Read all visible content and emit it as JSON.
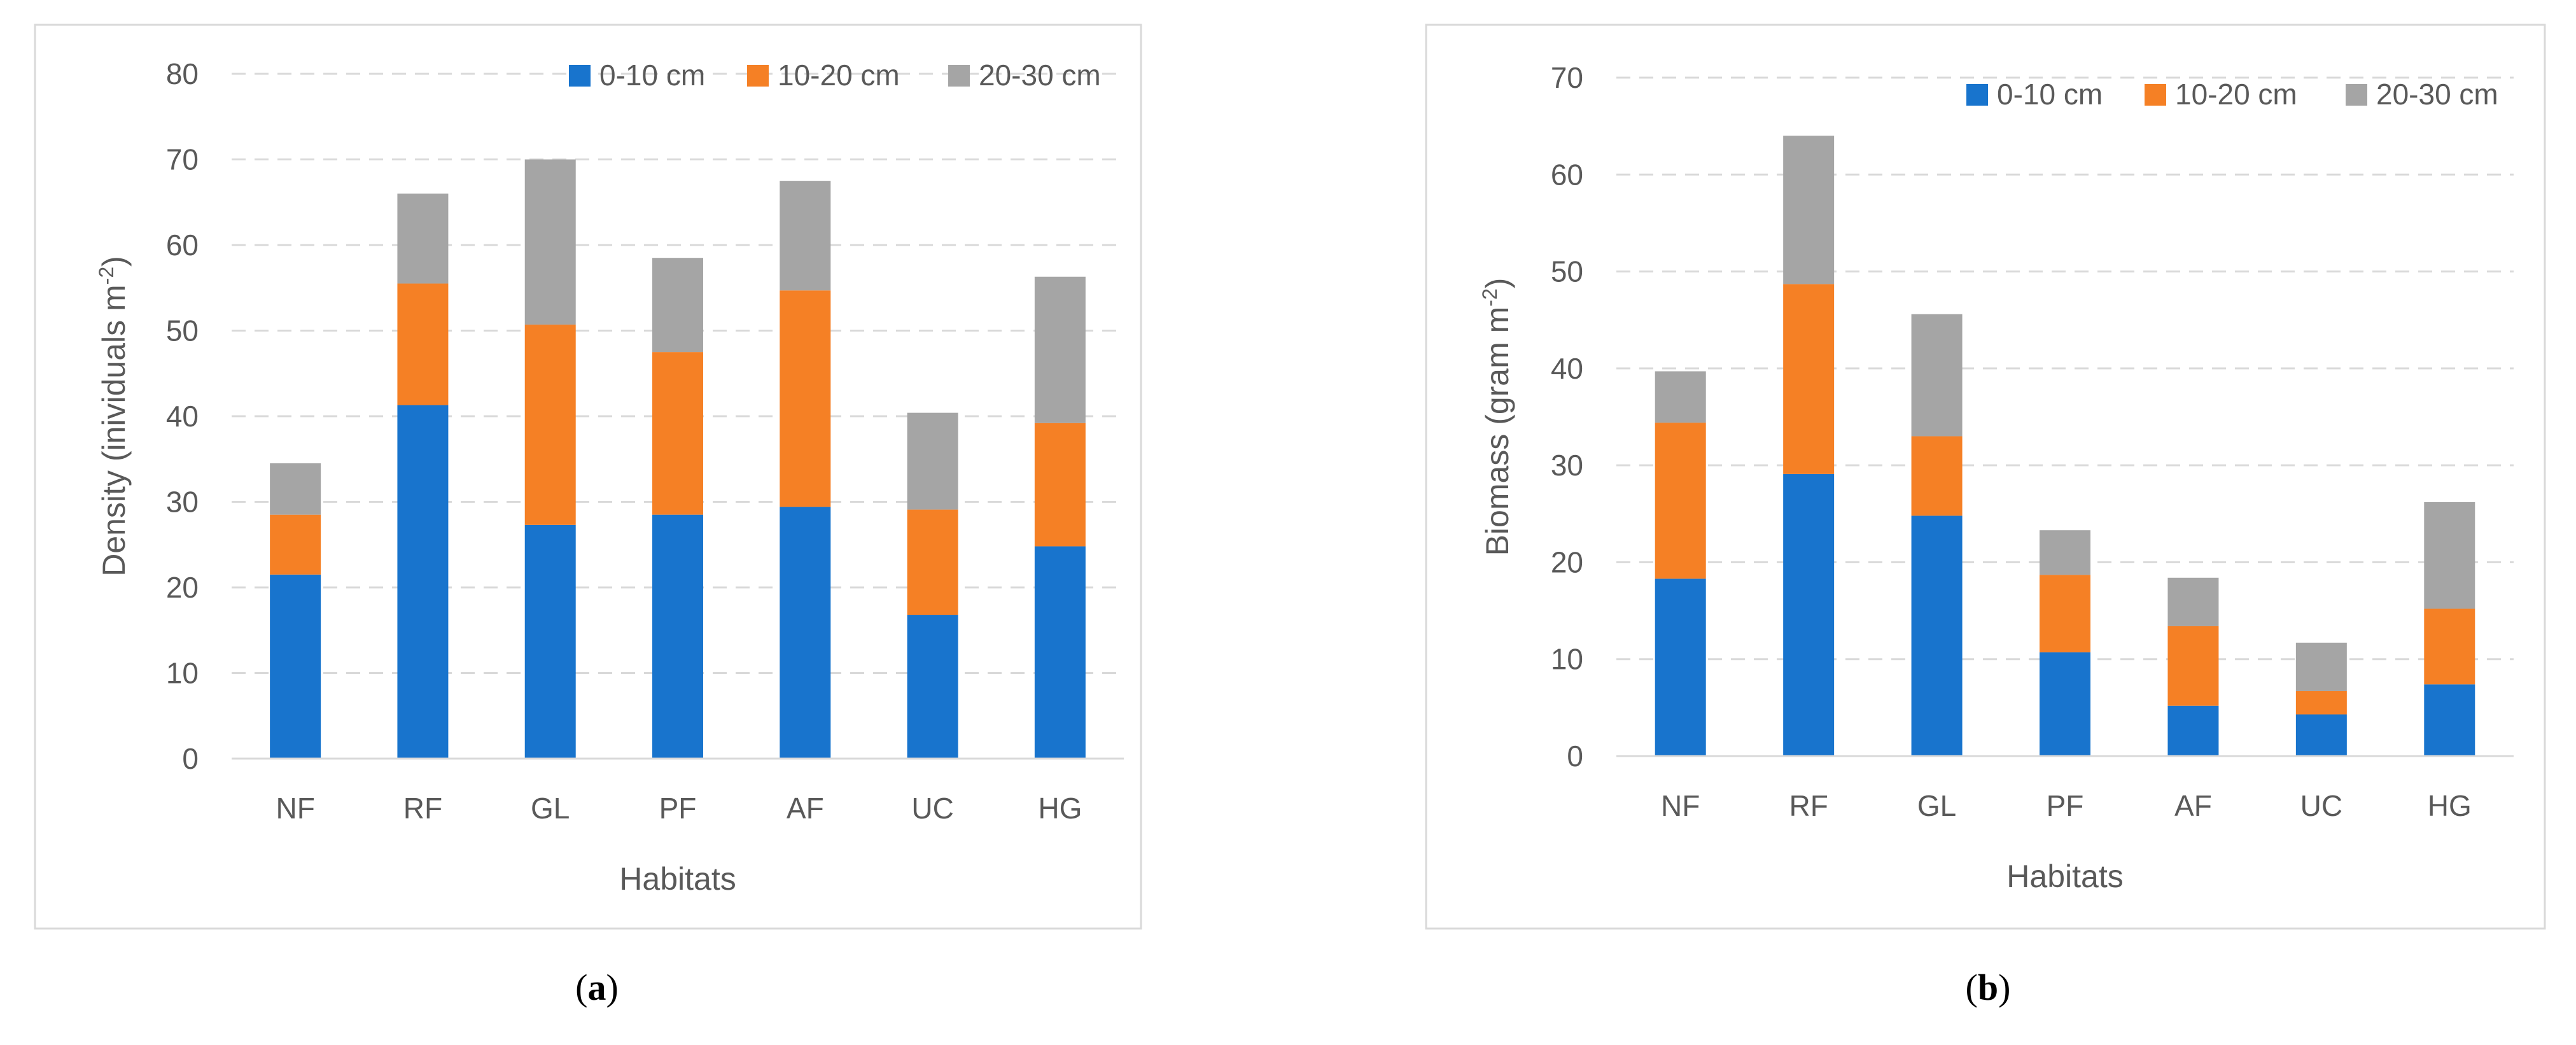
{
  "chart_data": [
    {
      "type": "bar",
      "stacked": true,
      "categories": [
        "NF",
        "RF",
        "GL",
        "PF",
        "AF",
        "UC",
        "HG"
      ],
      "series": [
        {
          "name": "0-10 cm",
          "color": "#1874CD",
          "values": [
            21.5,
            41.3,
            27.3,
            28.5,
            29.4,
            16.8,
            24.8
          ]
        },
        {
          "name": "10-20 cm",
          "color": "#F58025",
          "values": [
            7.0,
            14.2,
            23.4,
            19.0,
            25.3,
            12.3,
            14.4
          ]
        },
        {
          "name": "20-30 cm",
          "color": "#A5A5A5",
          "values": [
            6.0,
            10.5,
            19.3,
            11.0,
            12.8,
            11.3,
            17.1
          ]
        }
      ],
      "title": "",
      "xlabel": "Habitats",
      "ylabel": "Density (inividuals m",
      "ylabel_sup": "-2",
      "ylabel_close": ")",
      "ylim": [
        0,
        80
      ],
      "yticks": [
        "0",
        "10",
        "20",
        "30",
        "40",
        "50",
        "60",
        "70",
        "80"
      ],
      "legend_position": "top-right",
      "grid": true,
      "panel_label": "a"
    },
    {
      "type": "bar",
      "stacked": true,
      "categories": [
        "NF",
        "RF",
        "GL",
        "PF",
        "AF",
        "UC",
        "HG"
      ],
      "series": [
        {
          "name": "0-10 cm",
          "color": "#1874CD",
          "values": [
            18.3,
            29.1,
            24.8,
            10.7,
            5.2,
            4.3,
            7.4
          ]
        },
        {
          "name": "10-20 cm",
          "color": "#F58025",
          "values": [
            16.1,
            19.6,
            8.2,
            8.0,
            8.2,
            2.4,
            7.8
          ]
        },
        {
          "name": "20-30 cm",
          "color": "#A5A5A5",
          "values": [
            5.3,
            15.3,
            12.6,
            4.6,
            5.0,
            5.0,
            11.0
          ]
        }
      ],
      "title": "",
      "xlabel": "Habitats",
      "ylabel": "Biomass (gram m",
      "ylabel_sup": "-2",
      "ylabel_close": ")",
      "ylim": [
        0,
        70
      ],
      "yticks": [
        "0",
        "10",
        "20",
        "30",
        "40",
        "50",
        "60",
        "70"
      ],
      "legend_position": "top-right",
      "grid": true,
      "panel_label": "b"
    }
  ]
}
